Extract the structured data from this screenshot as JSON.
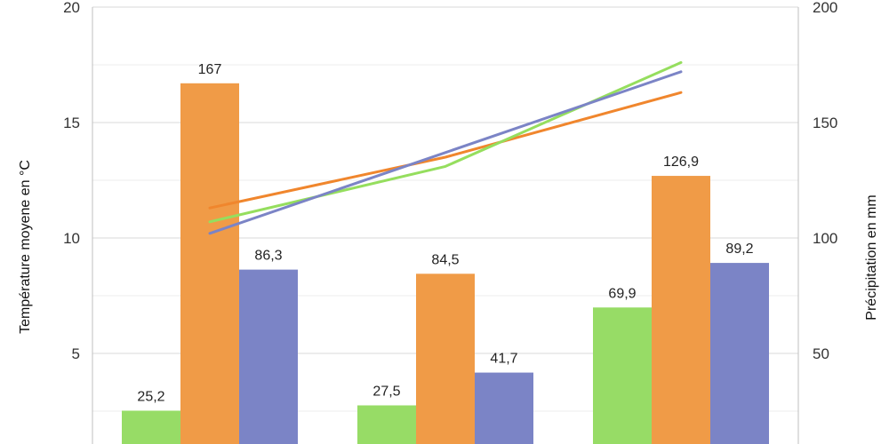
{
  "chart_data": {
    "type": "bar",
    "categories": [
      "",
      "",
      ""
    ],
    "series": [
      {
        "values": [
          25.2,
          27.5,
          69.9
        ],
        "labels": [
          "25,2",
          "27,5",
          "69,9"
        ],
        "color": "#97dc66"
      },
      {
        "values": [
          167,
          84.5,
          126.9
        ],
        "labels": [
          "167",
          "84,5",
          "126,9"
        ],
        "color": "#f09b47"
      },
      {
        "values": [
          86.3,
          41.7,
          89.2
        ],
        "labels": [
          "86,3",
          "41,7",
          "89,2"
        ],
        "color": "#7b84c6"
      }
    ],
    "lines": [
      {
        "type": "line",
        "axis": "left",
        "color": "#f0862d",
        "values": [
          11.3,
          13.5,
          16.3
        ]
      },
      {
        "type": "line",
        "axis": "left",
        "color": "#95de5e",
        "values": [
          10.7,
          13.1,
          17.6
        ]
      },
      {
        "type": "line",
        "axis": "left",
        "color": "#7b84c6",
        "values": [
          10.2,
          13.7,
          17.2
        ]
      }
    ],
    "ylabel": "Température moyene en °C",
    "y2label": "Précipitation en mm",
    "ylim": [
      0,
      20
    ],
    "y2lim": [
      0,
      200
    ],
    "yticks": [
      "5",
      "10",
      "15",
      "20"
    ],
    "y2ticks": [
      "50",
      "100",
      "150",
      "200"
    ],
    "grid": true,
    "legend": "none"
  }
}
